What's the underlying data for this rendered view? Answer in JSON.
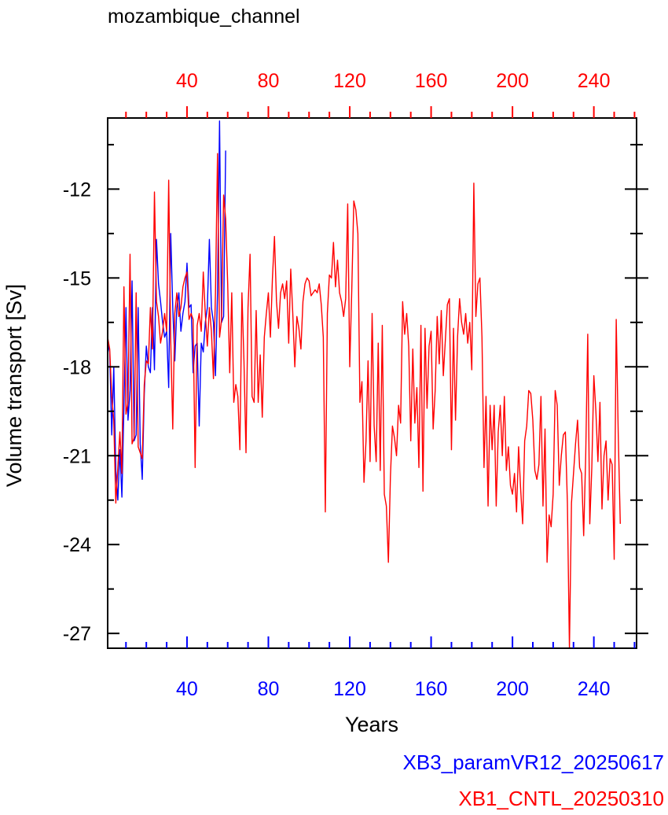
{
  "chart_data": {
    "type": "line",
    "title": "mozambique_channel",
    "xlabel": "Years",
    "ylabel": "Volume transport [Sv]",
    "xlim": [
      1,
      261
    ],
    "ylim": [
      -27.5,
      -9.6
    ],
    "x_ticks_major": [
      40,
      80,
      120,
      160,
      200,
      240
    ],
    "x_ticks_minor": [
      10,
      20,
      30,
      50,
      60,
      70,
      90,
      100,
      110,
      130,
      140,
      150,
      170,
      180,
      190,
      210,
      220,
      230,
      250,
      260
    ],
    "y_ticks_major": [
      -27,
      -24,
      -21,
      -18,
      -15,
      -12
    ],
    "y_ticks_minor": [
      -25.5,
      -22.5,
      -19.5,
      -16.5,
      -13.5,
      -10.5
    ],
    "x_tick_labels": [
      "40",
      "80",
      "120",
      "160",
      "200",
      "240"
    ],
    "y_tick_labels": [
      "-27",
      "-24",
      "-21",
      "-18",
      "-15",
      "-12"
    ],
    "grid": false,
    "colors": {
      "bottom_axis": "#0000ff",
      "top_axis": "#ff0000"
    },
    "series": [
      {
        "name": "XB3_paramVR12_20250617",
        "color": "#0000ff",
        "x_start": 1,
        "values": [
          -17.2,
          -17.5,
          -20.3,
          -18.0,
          -21.5,
          -22.5,
          -20.8,
          -22.4,
          -19.3,
          -16.0,
          -19.8,
          -18.8,
          -15.1,
          -20.5,
          -20.3,
          -16.0,
          -20.6,
          -21.8,
          -18.9,
          -17.3,
          -18.0,
          -18.2,
          -16.0,
          -18.1,
          -13.7,
          -15.2,
          -15.8,
          -16.5,
          -17.0,
          -16.8,
          -18.7,
          -13.5,
          -16.0,
          -17.8,
          -16.0,
          -15.5,
          -16.8,
          -16.2,
          -15.8,
          -14.5,
          -16.0,
          -15.9,
          -18.2,
          -17.3,
          -17.2,
          -20.0,
          -17.2,
          -17.5,
          -16.5,
          -16.0,
          -13.7,
          -16.0,
          -16.5,
          -18.3,
          -15.5,
          -9.7,
          -16.5,
          -16.3,
          -10.7
        ]
      },
      {
        "name": "XB1_CNTL_20250310",
        "color": "#ff0000",
        "x_start": 1,
        "values": [
          -17.0,
          -17.4,
          -19.0,
          -19.8,
          -22.6,
          -21.4,
          -20.2,
          -21.6,
          -15.3,
          -19.6,
          -19.2,
          -14.2,
          -20.6,
          -20.4,
          -15.5,
          -20.7,
          -20.9,
          -21.1,
          -18.6,
          -17.8,
          -17.9,
          -16.0,
          -17.4,
          -12.1,
          -15.8,
          -16.3,
          -17.2,
          -16.8,
          -16.2,
          -16.8,
          -11.7,
          -17.1,
          -20.1,
          -16.2,
          -15.5,
          -16.3,
          -16.0,
          -15.3,
          -15.0,
          -14.8,
          -16.4,
          -16.2,
          -16.4,
          -21.4,
          -16.6,
          -16.2,
          -16.8,
          -14.8,
          -16.2,
          -17.3,
          -16.0,
          -16.8,
          -18.4,
          -15.5,
          -10.8,
          -17.0,
          -16.4,
          -12.2,
          -13.0,
          -15.2,
          -18.2,
          -15.5,
          -19.2,
          -18.6,
          -19.0,
          -20.8,
          -15.5,
          -17.8,
          -20.9,
          -16.0,
          -14.2,
          -19.0,
          -19.2,
          -16.1,
          -19.2,
          -17.6,
          -19.7,
          -17.0,
          -16.2,
          -15.5,
          -17.0,
          -15.0,
          -13.6,
          -15.8,
          -16.7,
          -15.5,
          -15.2,
          -15.7,
          -15.1,
          -17.2,
          -14.7,
          -16.2,
          -18.0,
          -16.3,
          -16.7,
          -17.4,
          -15.8,
          -15.2,
          -15.0,
          -15.1,
          -15.6,
          -15.5,
          -15.4,
          -15.5,
          -15.2,
          -15.9,
          -17.0,
          -22.9,
          -16.2,
          -14.9,
          -15.0,
          -13.8,
          -15.3,
          -14.4,
          -15.5,
          -15.8,
          -16.3,
          -15.7,
          -12.5,
          -18.0,
          -15.4,
          -12.4,
          -12.7,
          -13.5,
          -19.2,
          -18.5,
          -21.9,
          -20.5,
          -17.8,
          -21.2,
          -16.2,
          -20.0,
          -21.2,
          -17.2,
          -21.5,
          -16.6,
          -22.3,
          -22.7,
          -24.6,
          -21.7,
          -20.0,
          -20.4,
          -21.0,
          -19.3,
          -19.9,
          -15.8,
          -16.9,
          -16.2,
          -17.3,
          -20.5,
          -17.4,
          -19.9,
          -18.7,
          -21.4,
          -16.6,
          -22.2,
          -16.7,
          -19.4,
          -17.3,
          -16.8,
          -20.1,
          -18.8,
          -16.3,
          -17.9,
          -16.1,
          -18.3,
          -17.1,
          -15.9,
          -15.7,
          -20.8,
          -16.7,
          -19.8,
          -17.0,
          -15.7,
          -16.5,
          -16.9,
          -16.2,
          -17.2,
          -16.5,
          -18.1,
          -11.8,
          -16.3,
          -15.2,
          -15.0,
          -17.0,
          -21.4,
          -19.0,
          -22.7,
          -19.3,
          -20.8,
          -19.3,
          -22.7,
          -20.2,
          -19.3,
          -21.0,
          -19.0,
          -21.5,
          -20.7,
          -22.0,
          -22.3,
          -21.6,
          -22.9,
          -20.7,
          -22.1,
          -23.3,
          -20.5,
          -20.0,
          -18.8,
          -18.9,
          -19.8,
          -21.5,
          -21.8,
          -21.3,
          -19.0,
          -22.7,
          -20.1,
          -24.6,
          -23.0,
          -23.4,
          -22.3,
          -18.8,
          -19.3,
          -22.0,
          -21.0,
          -20.3,
          -20.2,
          -22.6,
          -27.5,
          -22.6,
          -21.6,
          -20.6,
          -19.8,
          -21.4,
          -21.6,
          -23.7,
          -21.0,
          -16.9,
          -23.3,
          -21.4,
          -18.3,
          -19.5,
          -21.2,
          -19.2,
          -22.8,
          -21.0,
          -20.5,
          -22.5,
          -21.1,
          -21.3,
          -24.5,
          -16.4,
          -20.3,
          -23.3
        ]
      }
    ]
  }
}
